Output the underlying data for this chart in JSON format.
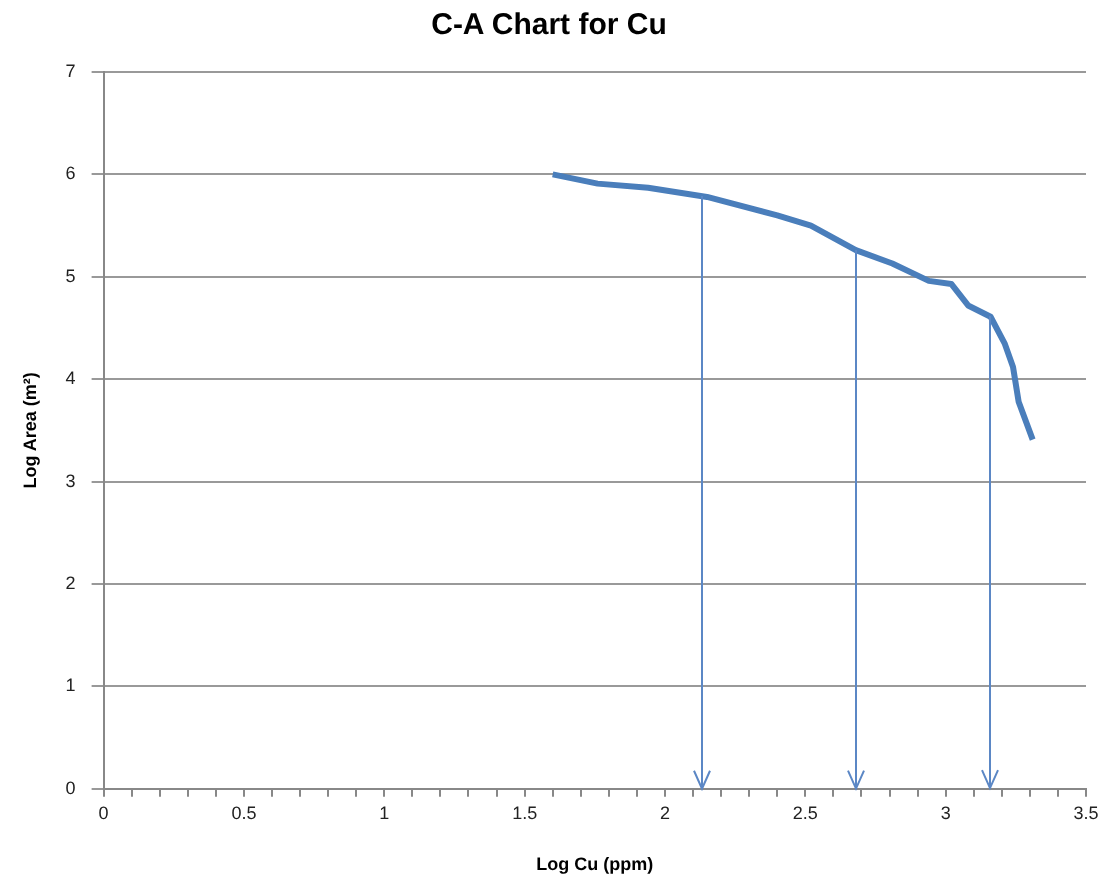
{
  "chart_data": {
    "type": "line",
    "title": "C-A Chart for Cu",
    "xlabel": "Log Cu (ppm)",
    "ylabel": "Log Area (m²)",
    "xlim": [
      0,
      3.5
    ],
    "ylim": [
      0,
      7
    ],
    "xticks": [
      0,
      {
        "value": 0.1,
        "label": null
      },
      {
        "value": 0.2,
        "label": null
      },
      {
        "value": 0.3,
        "label": null
      },
      {
        "value": 0.4,
        "label": null
      },
      0.5,
      {
        "value": 0.6,
        "label": null
      },
      {
        "value": 0.7,
        "label": null
      },
      {
        "value": 0.8,
        "label": null
      },
      {
        "value": 0.9,
        "label": null
      },
      1,
      {
        "value": 1.1,
        "label": null
      },
      {
        "value": 1.2,
        "label": null
      },
      {
        "value": 1.3,
        "label": null
      },
      {
        "value": 1.4,
        "label": null
      },
      1.5,
      {
        "value": 1.6,
        "label": null
      },
      {
        "value": 1.7,
        "label": null
      },
      {
        "value": 1.8,
        "label": null
      },
      {
        "value": 1.9,
        "label": null
      },
      2,
      {
        "value": 2.1,
        "label": null
      },
      {
        "value": 2.2,
        "label": null
      },
      {
        "value": 2.3,
        "label": null
      },
      {
        "value": 2.4,
        "label": null
      },
      2.5,
      {
        "value": 2.6,
        "label": null
      },
      {
        "value": 2.7,
        "label": null
      },
      {
        "value": 2.8,
        "label": null
      },
      {
        "value": 2.9,
        "label": null
      },
      3,
      {
        "value": 3.1,
        "label": null
      },
      {
        "value": 3.2,
        "label": null
      },
      {
        "value": 3.3,
        "label": null
      },
      {
        "value": 3.4,
        "label": null
      },
      3.5
    ],
    "yticks": [
      0,
      1,
      2,
      3,
      4,
      5,
      6,
      7
    ],
    "grid": "y",
    "legend": false,
    "marker": "none",
    "series": [
      {
        "color": "#4a7ebb",
        "x": [
          1.6,
          1.76,
          1.94,
          2.15,
          2.4,
          2.52,
          2.68,
          2.81,
          2.94,
          3.02,
          3.08,
          3.16,
          3.21,
          3.24,
          3.26,
          3.31
        ],
        "values": [
          6.0,
          5.91,
          5.87,
          5.78,
          5.6,
          5.5,
          5.26,
          5.13,
          4.96,
          4.93,
          4.72,
          4.61,
          4.35,
          4.12,
          3.78,
          3.41
        ]
      }
    ],
    "ref_lines": [
      {
        "axis": "x",
        "value": 2.13,
        "color": "#5b87c5"
      },
      {
        "axis": "x",
        "value": 2.68,
        "color": "#5b87c5"
      },
      {
        "axis": "x",
        "value": 3.16,
        "color": "#5b87c5"
      }
    ]
  }
}
